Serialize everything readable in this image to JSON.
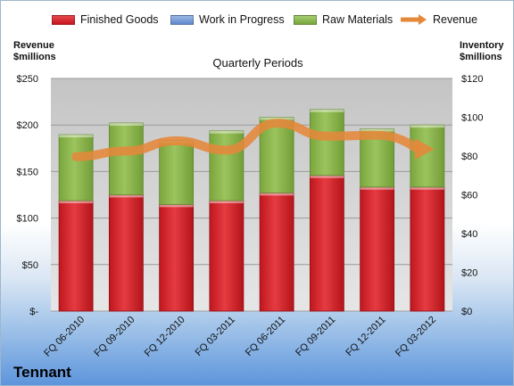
{
  "company": "Tennant",
  "chart_data": {
    "type": "bar",
    "title": "Quarterly Periods",
    "left_axis_label": "Revenue\n$millions",
    "right_axis_label": "Inventory\n$millions",
    "categories": [
      "FQ 06-2010",
      "FQ 09-2010",
      "FQ 12-2010",
      "FQ 03-2011",
      "FQ 06-2011",
      "FQ 09-2011",
      "FQ 12-2011",
      "FQ 03-2012"
    ],
    "left_ticks": [
      "$-",
      "$50",
      "$100",
      "$150",
      "$200",
      "$250"
    ],
    "right_ticks": [
      "$0",
      "$20",
      "$40",
      "$60",
      "$80",
      "$100",
      "$120"
    ],
    "left_ylim": [
      0,
      250
    ],
    "right_ylim": [
      0,
      120
    ],
    "stacked": true,
    "legend_position": "top",
    "series": [
      {
        "name": "Finished Goods",
        "axis": "right",
        "color": "#d62128",
        "values": [
          57,
          60,
          55,
          57,
          61,
          70,
          64,
          64
        ]
      },
      {
        "name": "Work in Progress",
        "axis": "right",
        "color": "#6f96d6",
        "values": [
          0,
          0,
          0,
          0,
          0,
          0,
          0,
          0
        ]
      },
      {
        "name": "Raw Materials",
        "axis": "right",
        "color": "#8ab84a",
        "values": [
          34,
          37,
          33,
          36,
          39,
          34,
          30,
          32
        ]
      },
      {
        "name": "Revenue",
        "axis": "left",
        "type": "line",
        "color": "#e5883a",
        "values": [
          166,
          172,
          183,
          173,
          202,
          188,
          189,
          175
        ]
      }
    ]
  }
}
